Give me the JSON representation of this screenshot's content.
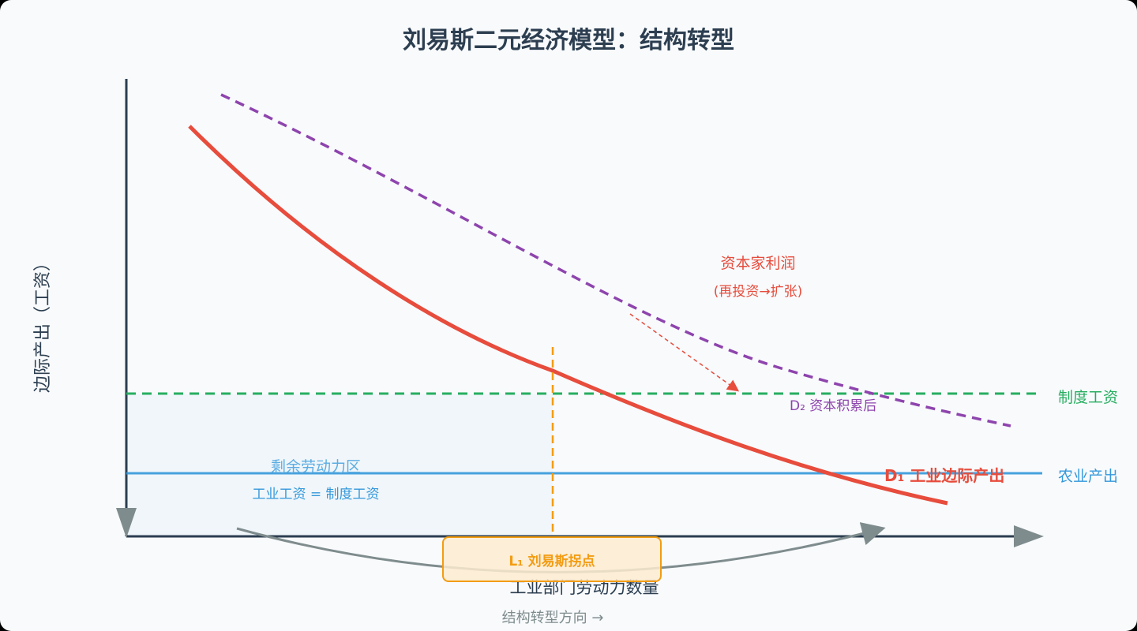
{
  "title": "刘易斯二元经济模型：结构转型",
  "y_axis_label": "边际产出（工资）",
  "x_axis_label": "工业部门劳动力数量",
  "institutional_wage_label": "制度工资",
  "agri_output_label": "农业产出",
  "d1_label": "D₁ 工业边际产出",
  "d2_label": "D₂ 资本积累后",
  "profit_label": "资本家利润",
  "profit_sub_label": "(再投资→扩张)",
  "surplus_zone_label": "剩余劳动力区",
  "surplus_zone_sub_label": "工业工资 = 制度工资",
  "lewis_point_label": "L₁ 刘易斯拐点",
  "transform_direction_label": "结构转型方向 →",
  "colors": {
    "title": "#2c3e50",
    "d1_curve": "#e74c3c",
    "d2_curve": "#8e44ad",
    "institutional_wage": "#27ae60",
    "agri_output": "#3498db",
    "lewis_point": "#f39c12",
    "axis": "#2c3e50",
    "arrow": "#7f8c8d"
  }
}
